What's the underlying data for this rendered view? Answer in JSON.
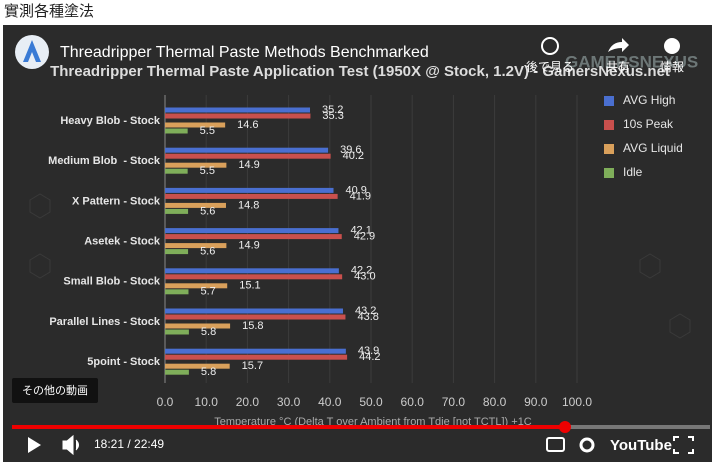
{
  "page_heading": "實測各種塗法",
  "video": {
    "title": "Threadripper Thermal Paste Methods Benchmarked",
    "watch_later": "後で見る",
    "share": "共有",
    "info": "情報",
    "watermark": "GAMERSNEXUS",
    "more_videos": "その他の動画",
    "time": "18:21 / 22:49",
    "logo": "YouTube"
  },
  "chart_data": {
    "type": "bar",
    "orientation": "horizontal",
    "title": "Threadripper Thermal Paste Application Test (1950X @ Stock, 1.2V) - GamersNexus.net",
    "x_label": "Temperature °C (Delta T over Ambient from Tdie [not TCTL]) +1C",
    "categories": [
      "Heavy Blob - Stock",
      "Medium Blob  - Stock",
      "X Pattern - Stock",
      "Asetek - Stock",
      "Small Blob - Stock",
      "Parallel Lines - Stock",
      "5point - Stock"
    ],
    "series": [
      {
        "name": "AVG High",
        "color": "#4a6fd0",
        "values": [
          35.2,
          39.6,
          40.9,
          42.1,
          42.2,
          43.2,
          43.9
        ]
      },
      {
        "name": "10s Peak",
        "color": "#c9504d",
        "values": [
          35.3,
          40.2,
          41.9,
          42.9,
          43,
          43.8,
          44.2
        ],
        "value_labels": [
          "35.3",
          "40.2",
          "41.9",
          "42.9",
          "43.0",
          "43.8",
          "44.2"
        ]
      },
      {
        "name": "AVG Liquid",
        "color": "#d9a05b",
        "values": [
          14.6,
          14.9,
          14.8,
          14.9,
          15.1,
          15.8,
          15.7
        ]
      },
      {
        "name": "Idle",
        "color": "#7fae5a",
        "values": [
          5.5,
          5.5,
          5.6,
          5.6,
          5.7,
          5.8,
          5.8
        ]
      }
    ],
    "xlim": [
      0,
      100
    ],
    "xticks": [
      {
        "value": 0,
        "label": "0.0"
      },
      {
        "value": 10,
        "label": "10.0"
      },
      {
        "value": 20,
        "label": "20.0"
      },
      {
        "value": 30,
        "label": "30.0"
      },
      {
        "value": 40,
        "label": "40.0"
      },
      {
        "value": 50,
        "label": "50.0"
      },
      {
        "value": 60,
        "label": "60.0"
      },
      {
        "value": 70,
        "label": "70.0"
      },
      {
        "value": 80,
        "label": "80.0"
      },
      {
        "value": 90,
        "label": "90.0"
      },
      {
        "value": 100,
        "label": "100.0"
      }
    ],
    "grid": true,
    "legend": "top-right"
  }
}
